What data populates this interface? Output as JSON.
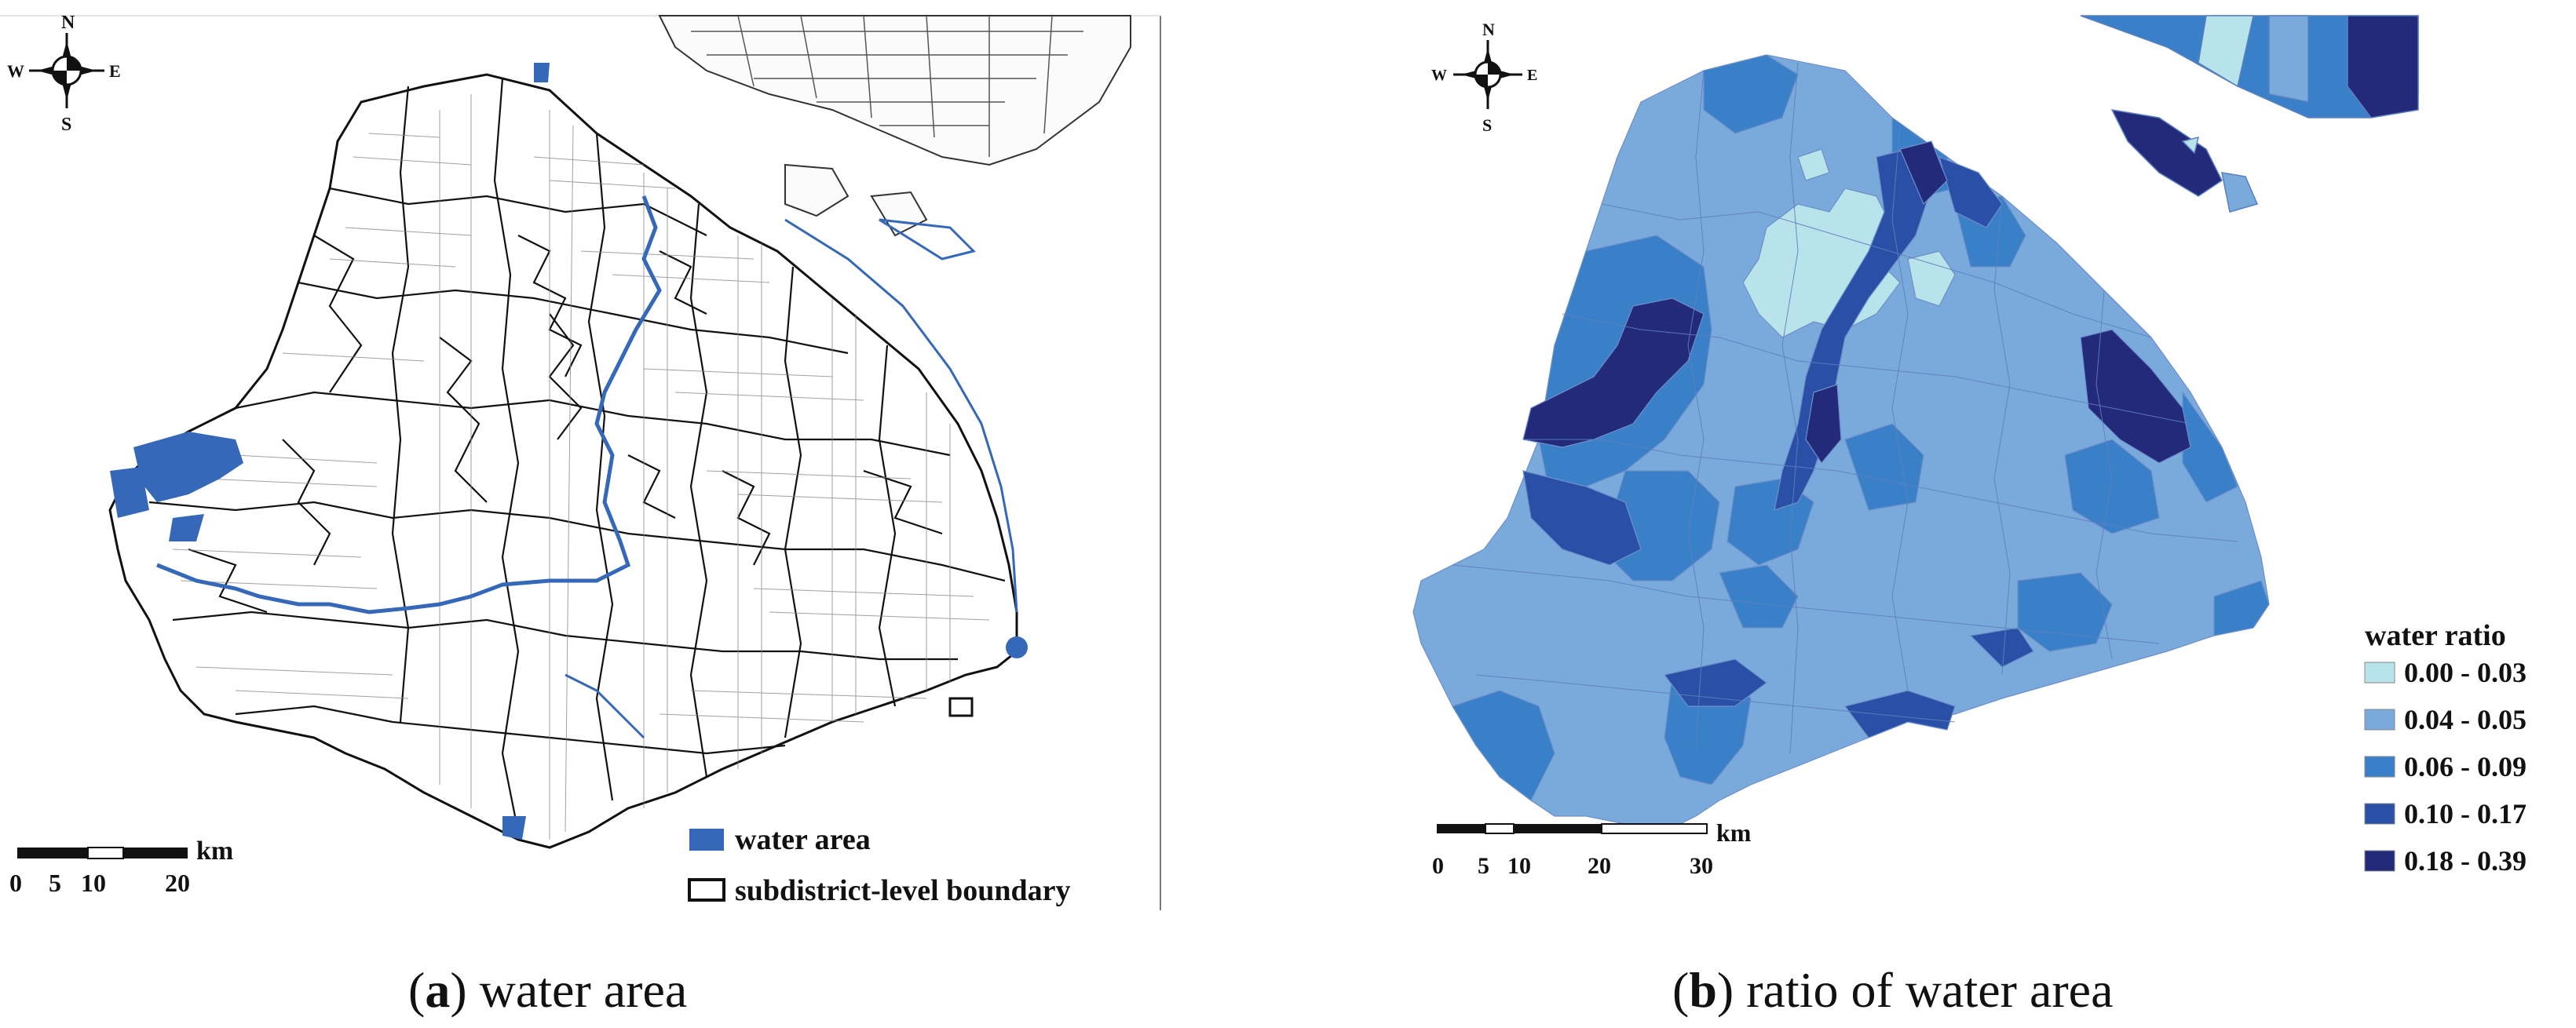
{
  "figure": {
    "panels": [
      {
        "id": "a",
        "letter": "a",
        "caption_text": "water area",
        "compass": {
          "n": "N",
          "s": "S",
          "e": "E",
          "w": "W"
        },
        "scale_bar": {
          "unit": "km",
          "ticks": [
            "0",
            "5",
            "10",
            "20"
          ]
        },
        "legend": {
          "items": [
            {
              "label": "water area",
              "color": "#3568b8",
              "swatch": "fill"
            },
            {
              "label": "subdistrict-level boundary",
              "color": "#111111",
              "swatch": "outline"
            }
          ]
        }
      },
      {
        "id": "b",
        "letter": "b",
        "caption_text": "ratio of water area",
        "compass": {
          "n": "N",
          "s": "S",
          "e": "E",
          "w": "W"
        },
        "scale_bar": {
          "unit": "km",
          "ticks": [
            "0",
            "5",
            "10",
            "20",
            "30"
          ]
        },
        "legend": {
          "title": "water ratio",
          "classes": [
            {
              "label": "0.00 - 0.03",
              "color": "#b9e3ea"
            },
            {
              "label": "0.04 - 0.05",
              "color": "#7aa9dc"
            },
            {
              "label": "0.06 - 0.09",
              "color": "#3a80c8"
            },
            {
              "label": "0.10 - 0.17",
              "color": "#2a4fa6"
            },
            {
              "label": "0.18 - 0.39",
              "color": "#232a7a"
            }
          ]
        }
      }
    ]
  }
}
